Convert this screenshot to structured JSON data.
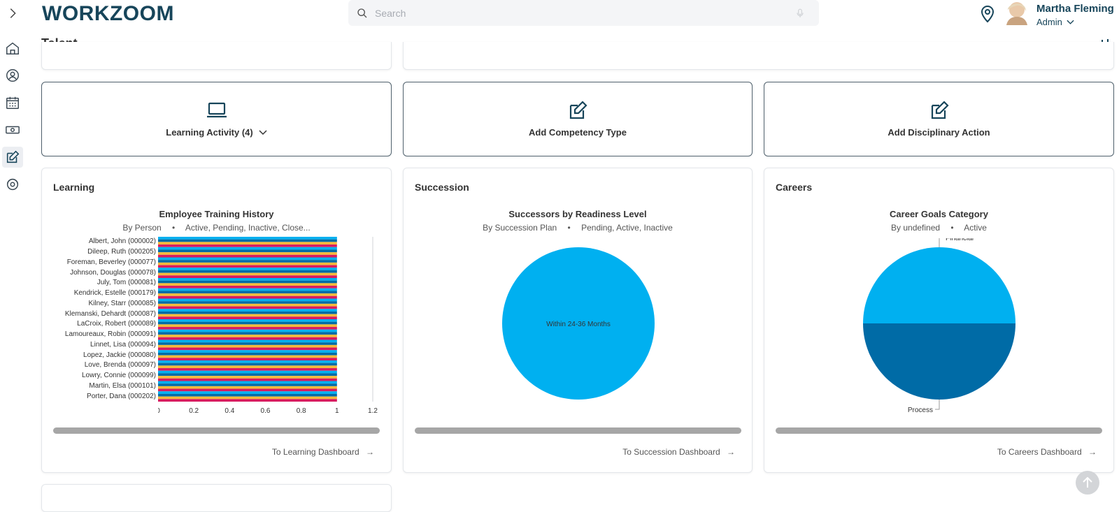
{
  "app": {
    "logo": "WORKZOOM"
  },
  "search": {
    "placeholder": "Search"
  },
  "user": {
    "name": "Martha Fleming",
    "role": "Admin"
  },
  "page": {
    "title": "Talent"
  },
  "actions": [
    {
      "label": "Learning Activity (4)",
      "icon": "laptop-icon"
    },
    {
      "label": "Add Competency Type",
      "icon": "edit-icon"
    },
    {
      "label": "Add Disciplinary Action",
      "icon": "edit-icon"
    }
  ],
  "learning": {
    "title": "Learning",
    "chart_title": "Employee Training History",
    "subtitle_left": "By Person",
    "subtitle_right": "Active, Pending, Inactive, Close...",
    "link": "To Learning Dashboard"
  },
  "succession": {
    "title": "Succession",
    "chart_title": "Successors by Readiness Level",
    "subtitle_left": "By Succession Plan",
    "subtitle_right": "Pending, Active, Inactive",
    "link": "To Succession Dashboard"
  },
  "careers": {
    "title": "Careers",
    "chart_title": "Career Goals Category",
    "subtitle_left": "By undefined",
    "subtitle_right": "Active",
    "link": "To Careers Dashboard"
  },
  "chart_data": [
    {
      "type": "bar",
      "orientation": "horizontal",
      "categories": [
        "Albert, John (000002)",
        "Dileep, Ruth (000205)",
        "Foreman, Beverley (000077)",
        "Johnson, Douglas (000078)",
        "July, Tom (000081)",
        "Kendrick, Estelle (000179)",
        "Kilney, Starr (000085)",
        "Klemanski, Dehardt (000087)",
        "LaCroix, Robert (000089)",
        "Lamoureaux, Robin (000091)",
        "Linnet, Lisa (000094)",
        "Lopez, Jackie (000080)",
        "Love, Brenda (000097)",
        "Lowry, Connie (000099)",
        "Martin, Elsa (000101)",
        "Porter, Dana (000202)"
      ],
      "values": [
        1,
        1,
        1,
        1,
        1,
        1,
        1,
        1,
        1,
        1,
        1,
        1,
        1,
        1,
        1,
        1
      ],
      "xlim": [
        0,
        1.2
      ],
      "xticks": [
        "0",
        "0.2",
        "0.4",
        "0.6",
        "0.8",
        "1",
        "1.2"
      ],
      "colors": [
        "#00b0f0",
        "#006ba6",
        "#f6b93b",
        "#d81b60"
      ]
    },
    {
      "type": "pie",
      "slices": [
        {
          "label": "Within 24-36 Months",
          "value": 1,
          "color": "#00b0f0"
        }
      ]
    },
    {
      "type": "pie",
      "slices": [
        {
          "label": "Financial",
          "value": 1,
          "color": "#00b0f0"
        },
        {
          "label": "Process",
          "value": 1,
          "color": "#006ba6"
        }
      ]
    }
  ]
}
